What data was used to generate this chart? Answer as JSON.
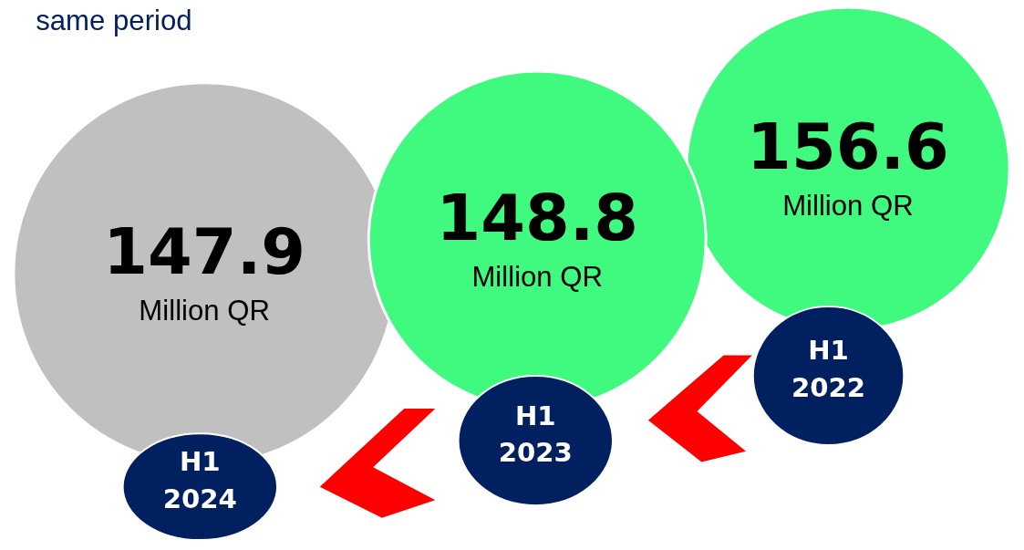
{
  "chart_data": {
    "type": "other",
    "title": "same period",
    "categories": [
      "H1 2024",
      "H1 2023",
      "H1 2022"
    ],
    "values": [
      147.9,
      148.8,
      156.6
    ],
    "colors": [
      "#c0c0c0",
      "#40fa80",
      "#40fa80"
    ],
    "data_labels": true,
    "annotations": [
      "Million QR"
    ]
  }
}
